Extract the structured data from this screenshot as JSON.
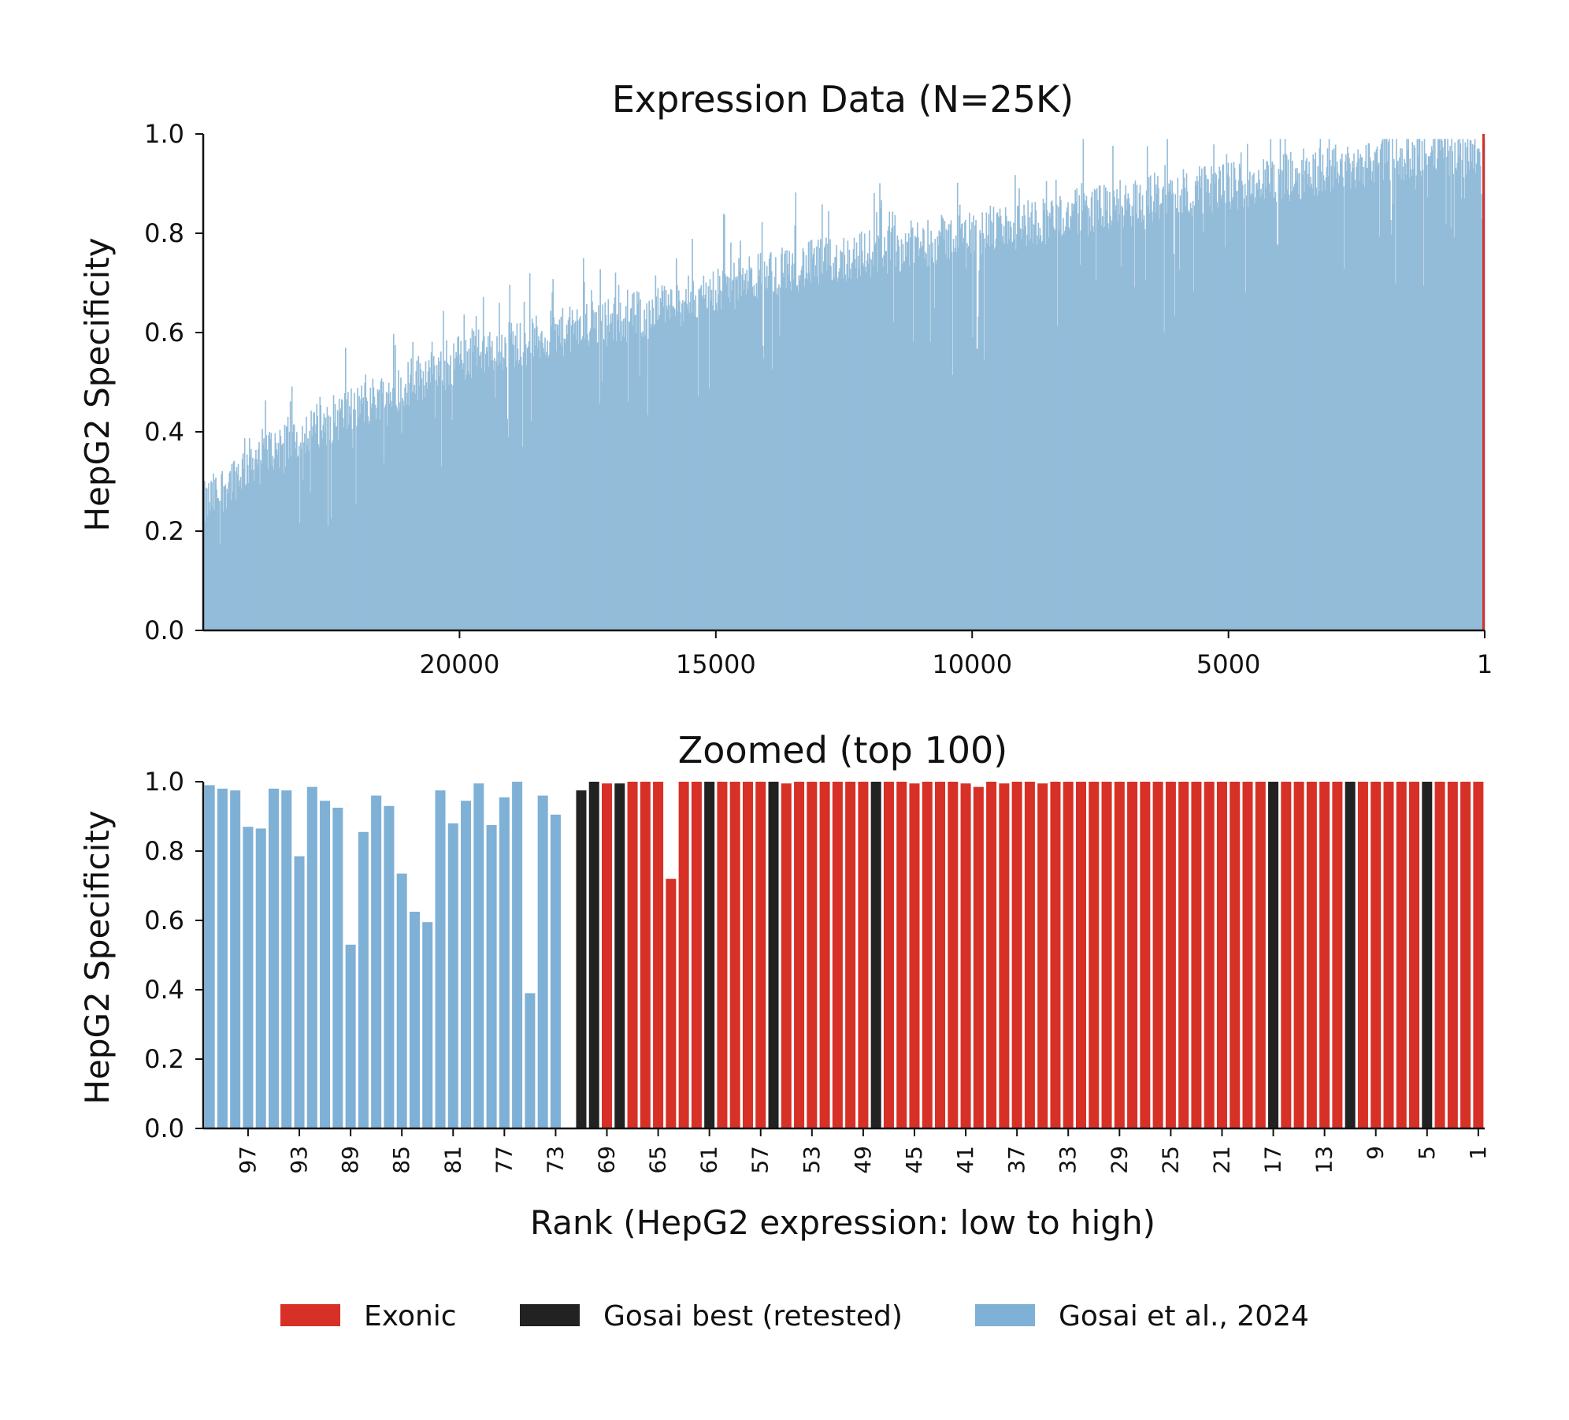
{
  "colors": {
    "exonic": "#d73027",
    "gosai_best": "#222222",
    "gosai_2024": "#7fb0d5",
    "gosai_2024_top": "#93bcd9",
    "axis": "#111111"
  },
  "chart_data": [
    {
      "type": "bar",
      "title": "Expression Data (N=25K)",
      "ylabel": "HepG2 Specificity",
      "xlabel": "",
      "ylim": [
        0,
        1.0
      ],
      "yticks": [
        "0.0",
        "0.2",
        "0.4",
        "0.6",
        "0.8",
        "1.0"
      ],
      "xlim": [
        25000,
        1
      ],
      "xticks": [
        "20000",
        "15000",
        "10000",
        "5000",
        "1"
      ],
      "xtick_values": [
        20000,
        15000,
        10000,
        5000,
        1
      ],
      "n_bars": 25000,
      "trend_envelope": {
        "rank": [
          25000,
          24000,
          22000,
          20000,
          18000,
          16000,
          14000,
          12000,
          10000,
          8000,
          6000,
          4000,
          2000,
          1
        ],
        "typical_value": [
          0.25,
          0.35,
          0.45,
          0.55,
          0.6,
          0.65,
          0.72,
          0.76,
          0.8,
          0.84,
          0.88,
          0.91,
          0.95,
          0.97
        ]
      },
      "series": [
        {
          "name": "Gosai et al., 2024",
          "color_key": "gosai_2024_top"
        },
        {
          "name": "Exonic",
          "color_key": "exonic"
        }
      ]
    },
    {
      "type": "bar",
      "title": "Zoomed (top 100)",
      "ylabel": "HepG2 Specificity",
      "xlabel": "Rank (HepG2 expression: low to high)",
      "ylim": [
        0,
        1.0
      ],
      "yticks": [
        "0.0",
        "0.2",
        "0.4",
        "0.6",
        "0.8",
        "1.0"
      ],
      "xticks": [
        "97",
        "93",
        "89",
        "85",
        "81",
        "77",
        "73",
        "69",
        "65",
        "61",
        "57",
        "53",
        "49",
        "45",
        "41",
        "37",
        "33",
        "29",
        "25",
        "21",
        "17",
        "13",
        "9",
        "5",
        "1"
      ],
      "ranks": [
        100,
        99,
        98,
        97,
        96,
        95,
        94,
        93,
        92,
        91,
        90,
        89,
        88,
        87,
        86,
        85,
        84,
        83,
        82,
        81,
        80,
        79,
        78,
        77,
        76,
        75,
        74,
        73,
        72,
        71,
        70,
        69,
        68,
        67,
        66,
        65,
        64,
        63,
        62,
        61,
        60,
        59,
        58,
        57,
        56,
        55,
        54,
        53,
        52,
        51,
        50,
        49,
        48,
        47,
        46,
        45,
        44,
        43,
        42,
        41,
        40,
        39,
        38,
        37,
        36,
        35,
        34,
        33,
        32,
        31,
        30,
        29,
        28,
        27,
        26,
        25,
        24,
        23,
        22,
        21,
        20,
        19,
        18,
        17,
        16,
        15,
        14,
        13,
        12,
        11,
        10,
        9,
        8,
        7,
        6,
        5,
        4,
        3,
        2,
        1
      ],
      "values": [
        0.99,
        0.98,
        0.975,
        0.87,
        0.865,
        0.98,
        0.975,
        0.785,
        0.985,
        0.945,
        0.925,
        0.53,
        0.855,
        0.96,
        0.93,
        0.735,
        0.625,
        0.595,
        0.975,
        0.88,
        0.945,
        0.995,
        0.875,
        0.955,
        1.0,
        0.39,
        0.96,
        0.905,
        0.0,
        0.975,
        1.0,
        0.995,
        0.995,
        1.0,
        1.0,
        1.0,
        0.72,
        1.0,
        1.0,
        1.0,
        1.0,
        1.0,
        1.0,
        1.0,
        1.0,
        0.995,
        1.0,
        1.0,
        1.0,
        1.0,
        1.0,
        1.0,
        1.0,
        1.0,
        1.0,
        0.995,
        1.0,
        1.0,
        1.0,
        0.995,
        0.985,
        1.0,
        0.995,
        1.0,
        1.0,
        0.995,
        1.0,
        1.0,
        1.0,
        1.0,
        1.0,
        1.0,
        1.0,
        1.0,
        1.0,
        1.0,
        1.0,
        1.0,
        1.0,
        1.0,
        1.0,
        1.0,
        1.0,
        1.0,
        1.0,
        1.0,
        1.0,
        1.0,
        1.0,
        1.0,
        1.0,
        1.0,
        1.0,
        1.0,
        1.0,
        1.0,
        1.0,
        1.0,
        1.0,
        1.0
      ],
      "categories": [
        "g",
        "g",
        "g",
        "g",
        "g",
        "g",
        "g",
        "g",
        "g",
        "g",
        "g",
        "g",
        "g",
        "g",
        "g",
        "g",
        "g",
        "g",
        "g",
        "g",
        "g",
        "g",
        "g",
        "g",
        "g",
        "g",
        "g",
        "g",
        "g",
        "b",
        "b",
        "e",
        "b",
        "e",
        "e",
        "e",
        "e",
        "e",
        "e",
        "b",
        "e",
        "e",
        "e",
        "e",
        "b",
        "e",
        "e",
        "e",
        "e",
        "e",
        "e",
        "e",
        "b",
        "e",
        "e",
        "e",
        "e",
        "e",
        "e",
        "e",
        "e",
        "e",
        "e",
        "e",
        "e",
        "e",
        "e",
        "e",
        "e",
        "e",
        "e",
        "e",
        "e",
        "e",
        "e",
        "e",
        "e",
        "e",
        "e",
        "e",
        "e",
        "e",
        "e",
        "b",
        "e",
        "e",
        "e",
        "e",
        "e",
        "b",
        "e",
        "e",
        "e",
        "e",
        "e",
        "b",
        "e",
        "e",
        "e",
        "e"
      ]
    }
  ],
  "legend": [
    {
      "label": "Exonic",
      "color_key": "exonic"
    },
    {
      "label": "Gosai best (retested)",
      "color_key": "gosai_best"
    },
    {
      "label": "Gosai et al., 2024",
      "color_key": "gosai_2024"
    }
  ]
}
